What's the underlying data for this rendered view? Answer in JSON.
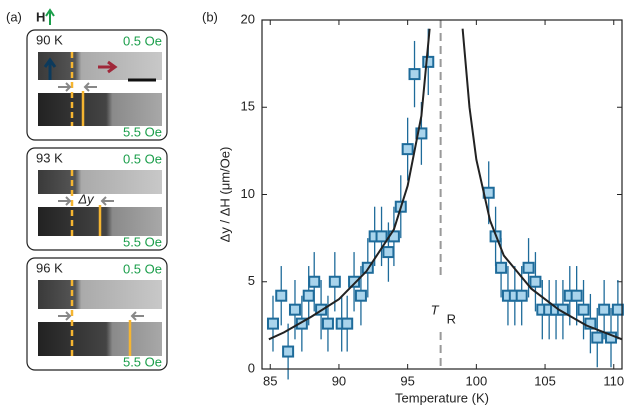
{
  "panel_a": {
    "label": "(a)",
    "field": "H",
    "shift": "Δy",
    "panels": [
      {
        "temp": "90 K",
        "top_field": "0.5 Oe",
        "bottom_field": "5.5 Oe"
      },
      {
        "temp": "93 K",
        "top_field": "0.5 Oe",
        "bottom_field": "5.5 Oe"
      },
      {
        "temp": "96 K",
        "top_field": "0.5 Oe",
        "bottom_field": "5.5 Oe"
      }
    ]
  },
  "chart_data": {
    "type": "scatter",
    "panel_label": "(b)",
    "x_label": "Temperature (K)",
    "y_label": "Δy / ΔH (μm/Oe)",
    "xlim": [
      84.4,
      110.6
    ],
    "xticks": [
      85,
      90,
      95,
      100,
      105,
      110
    ],
    "ylim": [
      0,
      20
    ],
    "yticks": [
      0,
      5,
      10,
      15,
      20
    ],
    "vline": {
      "x": 97.4,
      "label": "T",
      "subscript": "R",
      "color": "#999999"
    },
    "series": [
      {
        "kind": "points",
        "color": "#1e6b9a",
        "fill": "#a9d4ec",
        "x": [
          85.2,
          85.8,
          86.3,
          86.8,
          87.3,
          87.8,
          88.2,
          88.7,
          89.2,
          89.7,
          90.2,
          90.6,
          91.1,
          91.6,
          92.1,
          92.6,
          93.1,
          93.6,
          94.0,
          94.5,
          95.0,
          95.5,
          96.0,
          96.5,
          100.9,
          101.4,
          101.8,
          102.3,
          102.8,
          103.3,
          103.8,
          104.3,
          104.8,
          105.3,
          105.8,
          106.3,
          106.8,
          107.3,
          107.8,
          108.3,
          108.8,
          109.3,
          109.8,
          110.3
        ],
        "values": [
          2.6,
          4.2,
          1.0,
          3.4,
          2.6,
          4.2,
          5.0,
          3.4,
          2.6,
          5.0,
          2.6,
          2.6,
          5.0,
          4.2,
          5.8,
          7.6,
          7.6,
          6.7,
          7.6,
          9.3,
          12.6,
          16.9,
          13.5,
          17.6,
          10.1,
          7.6,
          5.8,
          4.2,
          4.2,
          4.2,
          5.8,
          5.0,
          3.4,
          3.4,
          3.4,
          3.4,
          4.2,
          4.2,
          3.4,
          2.6,
          1.8,
          3.4,
          1.8,
          3.4
        ],
        "errors": [
          1.6,
          1.7,
          1.6,
          1.7,
          1.6,
          1.7,
          1.7,
          1.7,
          1.6,
          1.7,
          1.6,
          1.6,
          1.7,
          1.7,
          1.7,
          1.7,
          1.7,
          1.7,
          1.7,
          1.8,
          1.8,
          1.9,
          1.8,
          1.9,
          1.8,
          1.7,
          1.7,
          1.7,
          1.7,
          1.7,
          1.7,
          1.7,
          1.7,
          1.7,
          1.7,
          1.7,
          1.7,
          1.7,
          1.7,
          1.7,
          1.7,
          1.7,
          1.7,
          1.7
        ]
      },
      {
        "kind": "line",
        "color": "#222222",
        "x": [
          84.9,
          86,
          88,
          90,
          92,
          94,
          95,
          96,
          96.6
        ],
        "values": [
          1.7,
          2.1,
          3.0,
          4.0,
          5.6,
          8.0,
          10.5,
          14.5,
          19.5
        ]
      },
      {
        "kind": "line",
        "color": "#222222",
        "x": [
          99.0,
          99.5,
          100,
          101,
          102,
          104,
          106,
          108,
          110.6
        ],
        "values": [
          19.5,
          15,
          12,
          8.5,
          6.5,
          4.6,
          3.4,
          2.5,
          1.7
        ]
      }
    ]
  }
}
